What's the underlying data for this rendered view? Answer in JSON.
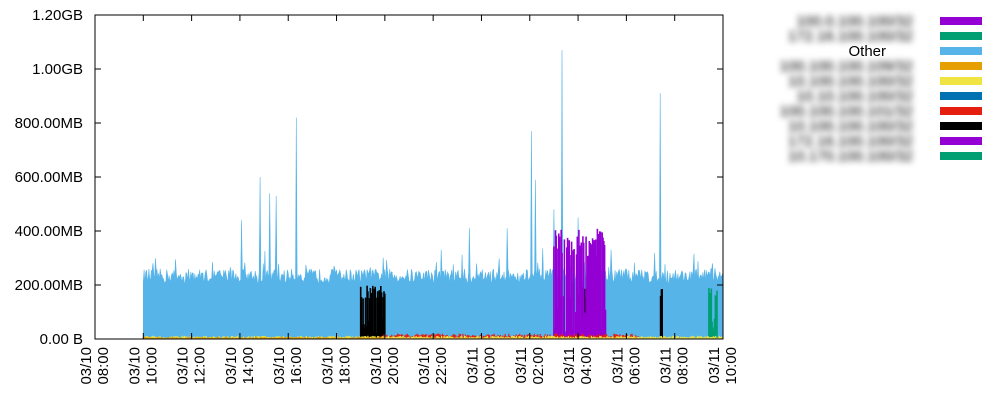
{
  "chart_data": {
    "type": "area",
    "title": "",
    "xlabel": "",
    "ylabel": "",
    "x_range": [
      "03/10 08:00",
      "03/11 10:00"
    ],
    "x_ticks": [
      {
        "time": "03/10 08:00",
        "line1": "03/10",
        "line2": "08:00"
      },
      {
        "time": "03/10 10:00",
        "line1": "03/10",
        "line2": "10:00"
      },
      {
        "time": "03/10 12:00",
        "line1": "03/10",
        "line2": "12:00"
      },
      {
        "time": "03/10 14:00",
        "line1": "03/10",
        "line2": "14:00"
      },
      {
        "time": "03/10 16:00",
        "line1": "03/10",
        "line2": "16:00"
      },
      {
        "time": "03/10 18:00",
        "line1": "03/10",
        "line2": "18:00"
      },
      {
        "time": "03/10 20:00",
        "line1": "03/10",
        "line2": "20:00"
      },
      {
        "time": "03/10 22:00",
        "line1": "03/10",
        "line2": "22:00"
      },
      {
        "time": "03/11 00:00",
        "line1": "03/11",
        "line2": "00:00"
      },
      {
        "time": "03/11 02:00",
        "line1": "03/11",
        "line2": "02:00"
      },
      {
        "time": "03/11 04:00",
        "line1": "03/11",
        "line2": "04:00"
      },
      {
        "time": "03/11 06:00",
        "line1": "03/11",
        "line2": "06:00"
      },
      {
        "time": "03/11 08:00",
        "line1": "03/11",
        "line2": "08:00"
      },
      {
        "time": "03/11 10:00",
        "line1": "03/11",
        "line2": "10:00"
      }
    ],
    "y_range_mb": [
      0,
      1200
    ],
    "y_ticks": [
      {
        "value_mb": 0,
        "label": "0.00 B"
      },
      {
        "value_mb": 200,
        "label": "200.00MB"
      },
      {
        "value_mb": 400,
        "label": "400.00MB"
      },
      {
        "value_mb": 600,
        "label": "600.00MB"
      },
      {
        "value_mb": 800,
        "label": "800.00MB"
      },
      {
        "value_mb": 1000,
        "label": "1.00GB"
      },
      {
        "value_mb": 1200,
        "label": "1.20GB"
      }
    ],
    "grid": false,
    "legend_position": "outside-right",
    "legend": [
      {
        "label": "100.0.100.100/32",
        "blurred": true,
        "color": "#9400d3"
      },
      {
        "label": "172.16.100.100/32",
        "blurred": true,
        "color": "#009e73"
      },
      {
        "label": "Other",
        "blurred": false,
        "color": "#56b4e9"
      },
      {
        "label": "100.100.100.109/32",
        "blurred": true,
        "color": "#e69f00"
      },
      {
        "label": "10.100.100.100/32",
        "blurred": true,
        "color": "#f0e442"
      },
      {
        "label": "10.10.100.100/32",
        "blurred": true,
        "color": "#0072b2"
      },
      {
        "label": "100.100.100.101/32",
        "blurred": true,
        "color": "#e51e10"
      },
      {
        "label": "10.100.100.100/32",
        "blurred": true,
        "color": "#000000"
      },
      {
        "label": "172.16.100.100/32",
        "blurred": true,
        "color": "#9400d3"
      },
      {
        "label": "10.170.100.100/32",
        "blurred": true,
        "color": "#009e73"
      }
    ],
    "series": [
      {
        "name": "Other",
        "color": "#56b4e9",
        "active_range": [
          "03/10 10:00",
          "03/11 10:00"
        ],
        "baseline_mb": 240,
        "spikes": [
          {
            "time": "03/10 14:05",
            "mb": 440
          },
          {
            "time": "03/10 14:50",
            "mb": 600
          },
          {
            "time": "03/10 15:15",
            "mb": 540
          },
          {
            "time": "03/10 15:30",
            "mb": 530
          },
          {
            "time": "03/10 16:20",
            "mb": 820
          },
          {
            "time": "03/10 22:20",
            "mb": 330
          },
          {
            "time": "03/10 23:30",
            "mb": 410
          },
          {
            "time": "03/11 01:05",
            "mb": 410
          },
          {
            "time": "03/11 02:05",
            "mb": 770
          },
          {
            "time": "03/11 02:15",
            "mb": 590
          },
          {
            "time": "03/11 03:00",
            "mb": 480
          },
          {
            "time": "03/11 03:20",
            "mb": 1070
          },
          {
            "time": "03/11 04:00",
            "mb": 450
          },
          {
            "time": "03/11 07:25",
            "mb": 910
          }
        ]
      },
      {
        "name": "",
        "color": "#000000",
        "bursts": [
          {
            "start": "03/10 19:00",
            "end": "03/10 20:00",
            "peak_mb": 200
          },
          {
            "start": "03/11 04:00",
            "end": "03/11 04:45",
            "peak_mb": 205
          },
          {
            "start": "03/11 07:25",
            "end": "03/11 07:30",
            "peak_mb": 195
          }
        ]
      },
      {
        "name": "",
        "color": "#9400d3",
        "bursts": [
          {
            "start": "03/11 03:00",
            "end": "03/11 05:10",
            "peak_mb": 410
          }
        ]
      },
      {
        "name": "",
        "color": "#009e73",
        "bursts": [
          {
            "start": "03/11 09:25",
            "end": "03/11 09:45",
            "peak_mb": 195
          }
        ]
      },
      {
        "name": "",
        "color": "#e51e10",
        "bursts": [
          {
            "start": "03/10 19:50",
            "end": "03/11 06:30",
            "peak_mb": 20
          }
        ]
      },
      {
        "name": "",
        "color": "#f0e442",
        "bursts": [
          {
            "start": "03/10 10:00",
            "end": "03/11 10:00",
            "peak_mb": 12
          }
        ]
      },
      {
        "name": "",
        "color": "#e69f00",
        "bursts": [
          {
            "start": "03/10 10:00",
            "end": "03/10 20:00",
            "peak_mb": 8
          }
        ]
      }
    ]
  }
}
